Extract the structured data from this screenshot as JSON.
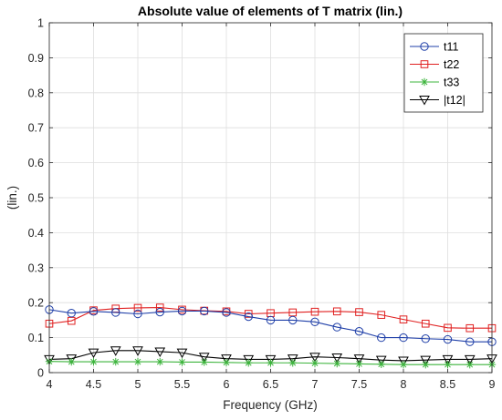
{
  "chart_data": {
    "type": "line",
    "title": "Absolute value of elements of T matrix (lin.)",
    "xlabel": "Frequency (GHz)",
    "ylabel": "(lin.)",
    "xlim": [
      4,
      9
    ],
    "ylim": [
      0,
      1
    ],
    "xticks": [
      "4",
      "4.5",
      "5",
      "5.5",
      "6",
      "6.5",
      "7",
      "7.5",
      "8",
      "8.5",
      "9"
    ],
    "yticks": [
      "0",
      "0.1",
      "0.2",
      "0.3",
      "0.4",
      "0.5",
      "0.6",
      "0.7",
      "0.8",
      "0.9",
      "1"
    ],
    "grid": true,
    "legend_position": "top-right",
    "x": [
      4,
      4.25,
      4.5,
      4.75,
      5,
      5.25,
      5.5,
      5.75,
      6,
      6.25,
      6.5,
      6.75,
      7,
      7.25,
      7.5,
      7.75,
      8,
      8.25,
      8.5,
      8.75,
      9
    ],
    "series": [
      {
        "name": "t11",
        "color": "#1f3fa8",
        "marker": "circle",
        "values": [
          0.18,
          0.17,
          0.175,
          0.172,
          0.168,
          0.173,
          0.176,
          0.176,
          0.172,
          0.16,
          0.15,
          0.15,
          0.145,
          0.13,
          0.118,
          0.1,
          0.1,
          0.097,
          0.095,
          0.088,
          0.088
        ]
      },
      {
        "name": "t22",
        "color": "#e02020",
        "marker": "square",
        "values": [
          0.14,
          0.148,
          0.178,
          0.183,
          0.185,
          0.186,
          0.18,
          0.177,
          0.175,
          0.168,
          0.17,
          0.172,
          0.174,
          0.175,
          0.173,
          0.165,
          0.152,
          0.14,
          0.128,
          0.127,
          0.127
        ]
      },
      {
        "name": "t33",
        "color": "#3cb43c",
        "marker": "star",
        "values": [
          0.032,
          0.031,
          0.031,
          0.031,
          0.031,
          0.031,
          0.03,
          0.03,
          0.029,
          0.028,
          0.028,
          0.028,
          0.027,
          0.026,
          0.025,
          0.024,
          0.023,
          0.023,
          0.023,
          0.023,
          0.023
        ]
      },
      {
        "name": "|t12|",
        "color": "#000000",
        "marker": "triangle-down",
        "values": [
          0.038,
          0.04,
          0.057,
          0.063,
          0.063,
          0.06,
          0.057,
          0.045,
          0.04,
          0.038,
          0.038,
          0.04,
          0.045,
          0.043,
          0.04,
          0.036,
          0.034,
          0.036,
          0.038,
          0.038,
          0.04
        ]
      }
    ]
  }
}
